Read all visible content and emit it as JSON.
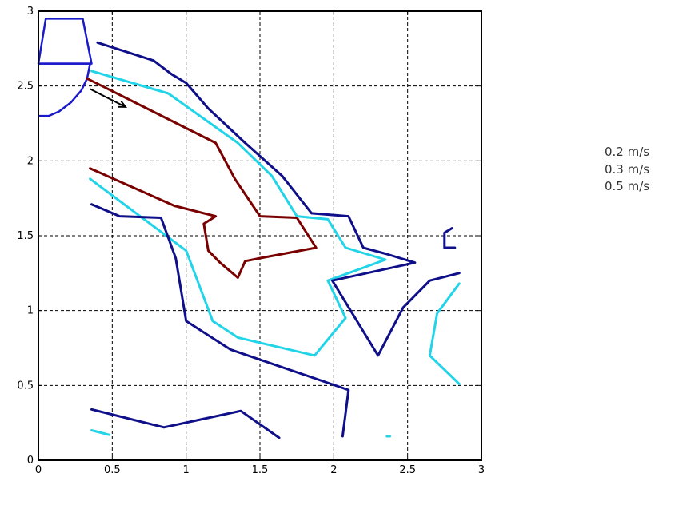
{
  "chart_data": {
    "type": "line",
    "title": "",
    "xlabel": "",
    "ylabel": "",
    "xlim": [
      0,
      3
    ],
    "ylim": [
      0,
      3
    ],
    "xticks": [
      "0",
      "0.5",
      "1",
      "1.5",
      "2",
      "2.5",
      "3"
    ],
    "yticks": [
      "0",
      "0.5",
      "1",
      "1.5",
      "2",
      "2.5",
      "3"
    ],
    "grid": true,
    "legend": [
      "0.2 m/s",
      "0.3 m/s",
      "0.5 m/s"
    ],
    "colors": {
      "level_02": "#7a0000",
      "level_03": "#22d4e8",
      "level_05": "#0f0f8a",
      "inlet": "#1a1acc",
      "arrow": "#000000"
    },
    "inlet": {
      "trapezoid": [
        [
          0.05,
          2.95
        ],
        [
          0.3,
          2.95
        ],
        [
          0.36,
          2.65
        ],
        [
          0.0,
          2.65
        ]
      ],
      "arc": [
        [
          0.0,
          2.65
        ],
        [
          0.35,
          2.65
        ],
        [
          0.33,
          2.55
        ],
        [
          0.29,
          2.47
        ],
        [
          0.22,
          2.39
        ],
        [
          0.14,
          2.33
        ],
        [
          0.07,
          2.3
        ],
        [
          0.0,
          2.3
        ]
      ]
    },
    "arrow": {
      "from": [
        0.35,
        2.48
      ],
      "to": [
        0.59,
        2.36
      ]
    },
    "series": [
      {
        "level": "0.2 m/s",
        "color": "level_02",
        "points": [
          [
            0.33,
            2.55
          ],
          [
            1.2,
            2.12
          ],
          [
            1.33,
            1.88
          ],
          [
            1.5,
            1.63
          ],
          [
            1.75,
            1.62
          ],
          [
            1.88,
            1.42
          ],
          [
            1.5,
            1.35
          ],
          [
            1.4,
            1.33
          ],
          [
            1.35,
            1.22
          ],
          [
            1.23,
            1.32
          ],
          [
            1.15,
            1.4
          ],
          [
            1.12,
            1.58
          ],
          [
            1.2,
            1.63
          ],
          [
            0.92,
            1.7
          ],
          [
            0.35,
            1.95
          ]
        ]
      },
      {
        "level": "0.3 m/s",
        "color": "level_03",
        "points": [
          [
            0.36,
            2.6
          ],
          [
            0.88,
            2.45
          ],
          [
            1.35,
            2.12
          ],
          [
            1.58,
            1.9
          ],
          [
            1.75,
            1.63
          ],
          [
            1.96,
            1.61
          ],
          [
            2.08,
            1.42
          ],
          [
            2.35,
            1.34
          ],
          [
            1.96,
            1.2
          ],
          [
            2.08,
            0.95
          ],
          [
            1.87,
            0.7
          ],
          [
            1.35,
            0.82
          ],
          [
            1.18,
            0.93
          ],
          [
            1.0,
            1.4
          ],
          [
            0.35,
            1.88
          ]
        ]
      },
      {
        "level": "0.3 m/s",
        "color": "level_03",
        "points": [
          [
            0.36,
            0.2
          ],
          [
            0.48,
            0.17
          ]
        ]
      },
      {
        "level": "0.3 m/s",
        "color": "level_03",
        "points": [
          [
            2.85,
            1.18
          ],
          [
            2.7,
            0.98
          ],
          [
            2.65,
            0.7
          ],
          [
            2.85,
            0.51
          ]
        ]
      },
      {
        "level": "0.3 m/s",
        "color": "level_03",
        "points": [
          [
            2.36,
            0.16
          ],
          [
            2.38,
            0.16
          ]
        ]
      },
      {
        "level": "0.5 m/s",
        "color": "level_05",
        "points": [
          [
            0.4,
            2.79
          ],
          [
            0.78,
            2.67
          ],
          [
            0.9,
            2.58
          ],
          [
            1.0,
            2.52
          ],
          [
            1.15,
            2.35
          ],
          [
            1.4,
            2.12
          ],
          [
            1.65,
            1.9
          ],
          [
            1.85,
            1.65
          ],
          [
            2.1,
            1.63
          ],
          [
            2.2,
            1.42
          ],
          [
            2.35,
            1.38
          ],
          [
            2.55,
            1.32
          ],
          [
            1.99,
            1.2
          ],
          [
            2.3,
            0.7
          ],
          [
            2.47,
            1.02
          ],
          [
            2.65,
            1.2
          ],
          [
            2.85,
            1.25
          ]
        ]
      },
      {
        "level": "0.5 m/s",
        "color": "level_05",
        "points": [
          [
            0.36,
            1.71
          ],
          [
            0.55,
            1.63
          ],
          [
            0.83,
            1.62
          ],
          [
            0.93,
            1.35
          ],
          [
            1.0,
            0.93
          ],
          [
            1.3,
            0.74
          ],
          [
            2.1,
            0.47
          ],
          [
            2.06,
            0.16
          ]
        ]
      },
      {
        "level": "0.5 m/s",
        "color": "level_05",
        "points": [
          [
            0.36,
            0.34
          ],
          [
            0.85,
            0.22
          ],
          [
            1.37,
            0.33
          ],
          [
            1.63,
            0.15
          ]
        ]
      },
      {
        "level": "0.5 m/s",
        "color": "level_05",
        "points": [
          [
            2.8,
            1.55
          ],
          [
            2.75,
            1.52
          ],
          [
            2.75,
            1.42
          ],
          [
            2.82,
            1.42
          ]
        ]
      }
    ]
  }
}
